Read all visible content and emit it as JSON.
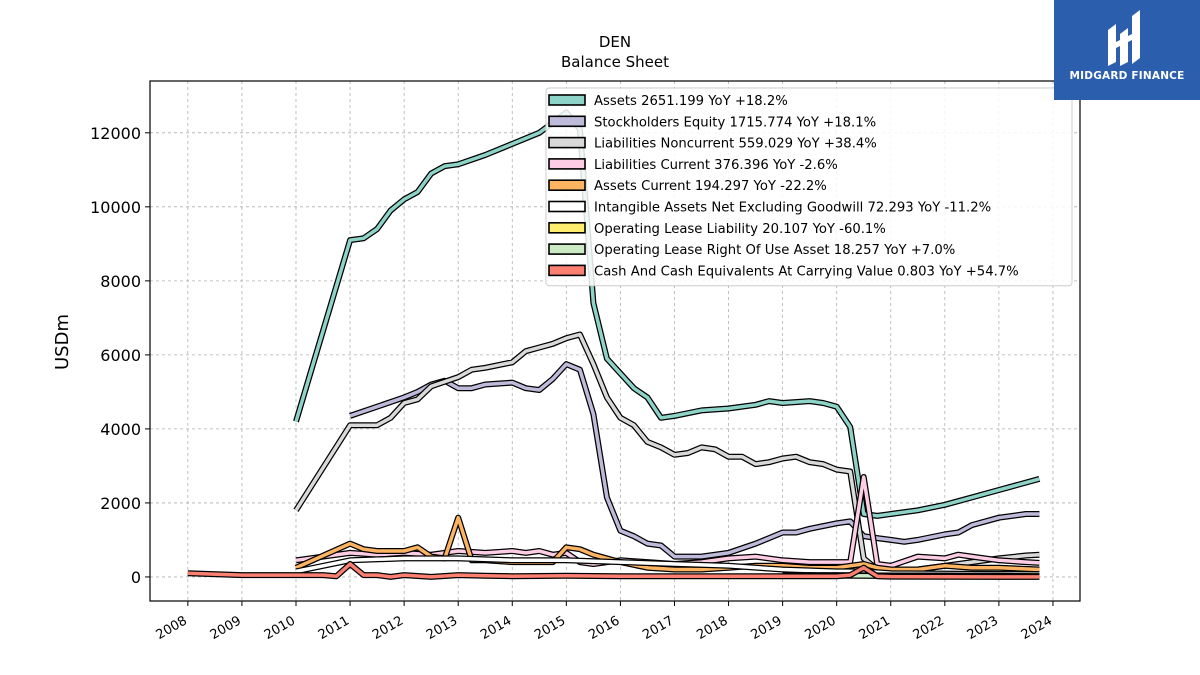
{
  "chart_data": {
    "type": "line",
    "title": "DEN",
    "subtitle": "Balance  Sheet",
    "ylabel": "USDm",
    "xlabel": "",
    "xlim": [
      2007.3,
      2024.5
    ],
    "ylim": [
      -650,
      13400
    ],
    "x_ticks": [
      "2008",
      "2009",
      "2010",
      "2011",
      "2012",
      "2013",
      "2014",
      "2015",
      "2016",
      "2017",
      "2018",
      "2019",
      "2020",
      "2021",
      "2022",
      "2023",
      "2024"
    ],
    "y_ticks": [
      "0",
      "2000",
      "4000",
      "6000",
      "8000",
      "10000",
      "12000"
    ],
    "grid": true,
    "legend_position": "upper-right",
    "series": [
      {
        "name": "Assets",
        "legend": "Assets  2651.199 YoY +18.2%",
        "color": "#8dd3c7",
        "points": [
          [
            2010,
            4200
          ],
          [
            2011,
            9100
          ],
          [
            2011.25,
            9150
          ],
          [
            2011.5,
            9400
          ],
          [
            2011.75,
            9900
          ],
          [
            2012,
            10200
          ],
          [
            2012.25,
            10400
          ],
          [
            2012.5,
            10900
          ],
          [
            2012.75,
            11100
          ],
          [
            2013,
            11150
          ],
          [
            2013.5,
            11400
          ],
          [
            2014,
            11700
          ],
          [
            2014.5,
            12000
          ],
          [
            2015,
            12550
          ],
          [
            2015.25,
            12100
          ],
          [
            2015.5,
            7400
          ],
          [
            2015.75,
            5900
          ],
          [
            2016,
            5500
          ],
          [
            2016.25,
            5100
          ],
          [
            2016.5,
            4850
          ],
          [
            2016.75,
            4300
          ],
          [
            2017,
            4350
          ],
          [
            2017.5,
            4500
          ],
          [
            2018,
            4550
          ],
          [
            2018.5,
            4650
          ],
          [
            2018.75,
            4750
          ],
          [
            2019,
            4700
          ],
          [
            2019.5,
            4750
          ],
          [
            2019.75,
            4700
          ],
          [
            2020,
            4600
          ],
          [
            2020.25,
            4050
          ],
          [
            2020.5,
            1700
          ],
          [
            2020.75,
            1650
          ],
          [
            2021,
            1700
          ],
          [
            2021.5,
            1800
          ],
          [
            2022,
            1950
          ],
          [
            2022.5,
            2150
          ],
          [
            2023,
            2350
          ],
          [
            2023.75,
            2650
          ]
        ]
      },
      {
        "name": "Stockholders Equity",
        "legend": "Stockholders Equity  1715.774 YoY +18.1%",
        "color": "#bebada",
        "points": [
          [
            2011,
            4350
          ],
          [
            2011.5,
            4600
          ],
          [
            2012,
            4850
          ],
          [
            2012.25,
            5000
          ],
          [
            2012.5,
            5200
          ],
          [
            2012.75,
            5300
          ],
          [
            2013,
            5100
          ],
          [
            2013.25,
            5100
          ],
          [
            2013.5,
            5200
          ],
          [
            2014,
            5250
          ],
          [
            2014.25,
            5100
          ],
          [
            2014.5,
            5050
          ],
          [
            2014.75,
            5350
          ],
          [
            2015,
            5750
          ],
          [
            2015.25,
            5600
          ],
          [
            2015.5,
            4400
          ],
          [
            2015.75,
            2150
          ],
          [
            2016,
            1250
          ],
          [
            2016.25,
            1100
          ],
          [
            2016.5,
            900
          ],
          [
            2016.75,
            850
          ],
          [
            2017,
            550
          ],
          [
            2017.5,
            550
          ],
          [
            2018,
            650
          ],
          [
            2018.5,
            900
          ],
          [
            2018.75,
            1050
          ],
          [
            2019,
            1200
          ],
          [
            2019.25,
            1200
          ],
          [
            2019.5,
            1300
          ],
          [
            2020,
            1450
          ],
          [
            2020.25,
            1500
          ],
          [
            2020.5,
            1100
          ],
          [
            2020.75,
            1050
          ],
          [
            2021,
            1000
          ],
          [
            2021.25,
            950
          ],
          [
            2021.5,
            1000
          ],
          [
            2022,
            1150
          ],
          [
            2022.25,
            1200
          ],
          [
            2022.5,
            1400
          ],
          [
            2023,
            1600
          ],
          [
            2023.5,
            1700
          ],
          [
            2023.75,
            1700
          ]
        ]
      },
      {
        "name": "Liabilities Noncurrent",
        "legend": "Liabilities Noncurrent  559.029 YoY +38.4%",
        "color": "#d9d9d9",
        "points": [
          [
            2010,
            1800
          ],
          [
            2011,
            4100
          ],
          [
            2011.5,
            4100
          ],
          [
            2011.75,
            4300
          ],
          [
            2012,
            4700
          ],
          [
            2012.25,
            4800
          ],
          [
            2012.5,
            5150
          ],
          [
            2013,
            5400
          ],
          [
            2013.25,
            5600
          ],
          [
            2013.5,
            5650
          ],
          [
            2014,
            5800
          ],
          [
            2014.25,
            6100
          ],
          [
            2014.5,
            6200
          ],
          [
            2014.75,
            6300
          ],
          [
            2015,
            6450
          ],
          [
            2015.25,
            6550
          ],
          [
            2015.5,
            5750
          ],
          [
            2015.75,
            4850
          ],
          [
            2016,
            4300
          ],
          [
            2016.25,
            4100
          ],
          [
            2016.5,
            3650
          ],
          [
            2016.75,
            3500
          ],
          [
            2017,
            3300
          ],
          [
            2017.25,
            3350
          ],
          [
            2017.5,
            3500
          ],
          [
            2017.75,
            3450
          ],
          [
            2018,
            3250
          ],
          [
            2018.25,
            3250
          ],
          [
            2018.5,
            3050
          ],
          [
            2018.75,
            3100
          ],
          [
            2019,
            3200
          ],
          [
            2019.25,
            3250
          ],
          [
            2019.5,
            3100
          ],
          [
            2019.75,
            3050
          ],
          [
            2020,
            2900
          ],
          [
            2020.25,
            2850
          ],
          [
            2020.5,
            500
          ],
          [
            2020.75,
            200
          ],
          [
            2021,
            200
          ],
          [
            2021.5,
            200
          ],
          [
            2022,
            300
          ],
          [
            2022.5,
            400
          ],
          [
            2023,
            500
          ],
          [
            2023.5,
            580
          ],
          [
            2023.75,
            600
          ]
        ]
      },
      {
        "name": "Liabilities Current",
        "legend": "Liabilities Current  376.396 YoY -2.6%",
        "color": "#fccde5",
        "points": [
          [
            2010,
            450
          ],
          [
            2011,
            650
          ],
          [
            2011.5,
            600
          ],
          [
            2012,
            650
          ],
          [
            2012.5,
            600
          ],
          [
            2013,
            700
          ],
          [
            2013.5,
            650
          ],
          [
            2014,
            700
          ],
          [
            2014.25,
            650
          ],
          [
            2014.5,
            700
          ],
          [
            2014.75,
            600
          ],
          [
            2015,
            650
          ],
          [
            2015.25,
            400
          ],
          [
            2015.5,
            350
          ],
          [
            2015.75,
            400
          ],
          [
            2016,
            450
          ],
          [
            2016.5,
            400
          ],
          [
            2017,
            350
          ],
          [
            2017.5,
            400
          ],
          [
            2018,
            500
          ],
          [
            2018.5,
            550
          ],
          [
            2019,
            450
          ],
          [
            2019.5,
            400
          ],
          [
            2020,
            400
          ],
          [
            2020.25,
            400
          ],
          [
            2020.5,
            2700
          ],
          [
            2020.75,
            350
          ],
          [
            2021,
            300
          ],
          [
            2021.5,
            550
          ],
          [
            2022,
            500
          ],
          [
            2022.25,
            600
          ],
          [
            2022.5,
            550
          ],
          [
            2023,
            450
          ],
          [
            2023.5,
            400
          ],
          [
            2023.75,
            380
          ]
        ]
      },
      {
        "name": "Assets Current",
        "legend": "Assets Current  194.297 YoY -22.2%",
        "color": "#fdb462",
        "points": [
          [
            2010,
            250
          ],
          [
            2011,
            900
          ],
          [
            2011.25,
            750
          ],
          [
            2011.5,
            700
          ],
          [
            2012,
            700
          ],
          [
            2012.25,
            800
          ],
          [
            2012.5,
            550
          ],
          [
            2012.75,
            500
          ],
          [
            2013,
            1600
          ],
          [
            2013.25,
            450
          ],
          [
            2013.5,
            450
          ],
          [
            2014,
            400
          ],
          [
            2014.5,
            400
          ],
          [
            2014.75,
            400
          ],
          [
            2015,
            800
          ],
          [
            2015.25,
            750
          ],
          [
            2015.5,
            600
          ],
          [
            2015.75,
            500
          ],
          [
            2016,
            400
          ],
          [
            2016.5,
            250
          ],
          [
            2017,
            200
          ],
          [
            2017.5,
            200
          ],
          [
            2018,
            250
          ],
          [
            2018.5,
            300
          ],
          [
            2019,
            300
          ],
          [
            2019.5,
            250
          ],
          [
            2020,
            250
          ],
          [
            2020.25,
            300
          ],
          [
            2020.5,
            350
          ],
          [
            2020.75,
            250
          ],
          [
            2021,
            200
          ],
          [
            2021.5,
            200
          ],
          [
            2022,
            300
          ],
          [
            2022.5,
            250
          ],
          [
            2023,
            250
          ],
          [
            2023.75,
            200
          ]
        ]
      },
      {
        "name": "Intangible Assets Net Excluding Goodwill",
        "legend": "Intangible Assets Net Excluding Goodwill  72.293 YoY -11.2%",
        "color": "#ffffff",
        "points": [
          [
            2010,
            150
          ],
          [
            2011,
            450
          ],
          [
            2012,
            500
          ],
          [
            2013,
            500
          ],
          [
            2014,
            450
          ],
          [
            2015,
            450
          ],
          [
            2016,
            400
          ],
          [
            2017,
            350
          ],
          [
            2018,
            300
          ],
          [
            2019,
            200
          ],
          [
            2020,
            150
          ],
          [
            2020.5,
            150
          ],
          [
            2021,
            100
          ],
          [
            2022,
            90
          ],
          [
            2023,
            80
          ],
          [
            2023.75,
            72
          ]
        ]
      },
      {
        "name": "Operating Lease Liability",
        "legend": "Operating Lease Liability  20.107 YoY -60.1%",
        "color": "#ffed6f",
        "points": [
          [
            2019,
            50
          ],
          [
            2020,
            50
          ],
          [
            2021,
            40
          ],
          [
            2022,
            40
          ],
          [
            2023,
            30
          ],
          [
            2023.75,
            20
          ]
        ]
      },
      {
        "name": "Operating Lease Right Of Use Asset",
        "legend": "Operating Lease Right Of Use Asset  18.257 YoY +7.0%",
        "color": "#ccebc5",
        "points": [
          [
            2019,
            40
          ],
          [
            2020,
            35
          ],
          [
            2021,
            25
          ],
          [
            2022,
            20
          ],
          [
            2023,
            18
          ],
          [
            2023.75,
            18
          ]
        ]
      },
      {
        "name": "Cash And Cash Equivalents At Carrying Value",
        "legend": "Cash And Cash Equivalents At Carrying Value  0.803 YoY +54.7%",
        "color": "#fb8072",
        "points": [
          [
            2008,
            100
          ],
          [
            2009,
            50
          ],
          [
            2010,
            50
          ],
          [
            2010.5,
            50
          ],
          [
            2010.75,
            20
          ],
          [
            2011,
            350
          ],
          [
            2011.25,
            50
          ],
          [
            2011.5,
            50
          ],
          [
            2011.75,
            0
          ],
          [
            2012,
            50
          ],
          [
            2012.5,
            0
          ],
          [
            2013,
            50
          ],
          [
            2013.5,
            30
          ],
          [
            2014,
            20
          ],
          [
            2015,
            30
          ],
          [
            2016,
            20
          ],
          [
            2017,
            20
          ],
          [
            2018,
            20
          ],
          [
            2019,
            20
          ],
          [
            2020,
            20
          ],
          [
            2020.25,
            50
          ],
          [
            2020.5,
            250
          ],
          [
            2020.75,
            20
          ],
          [
            2021,
            10
          ],
          [
            2022,
            5
          ],
          [
            2023,
            2
          ],
          [
            2023.75,
            1
          ]
        ]
      }
    ]
  },
  "logo": {
    "name": "MIDGARD FINANCE"
  }
}
